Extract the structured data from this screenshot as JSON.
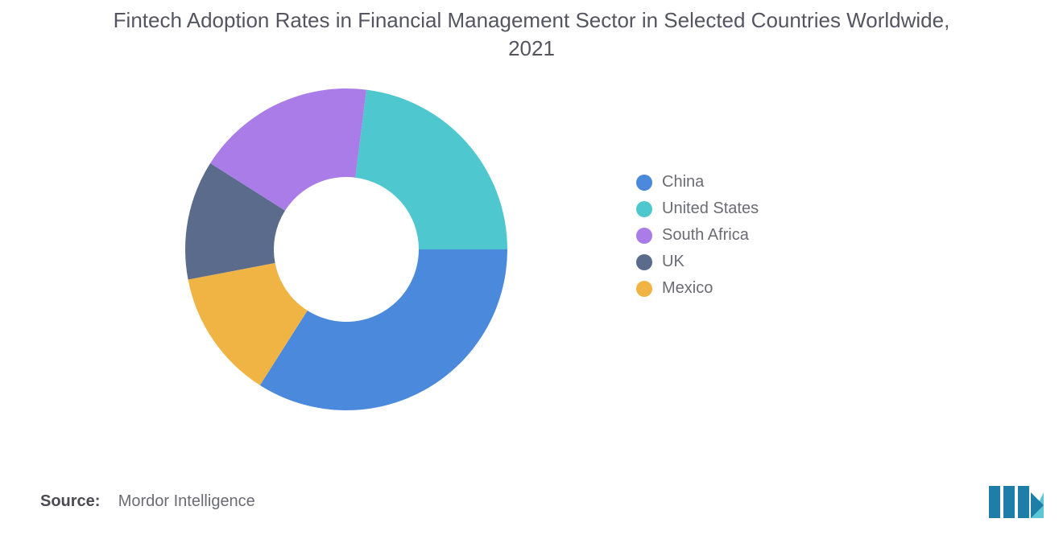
{
  "title": "Fintech Adoption Rates in Financial Management Sector in Selected Countries Worldwide, 2021",
  "title_fontsize": 26,
  "title_color": "#555560",
  "chart": {
    "type": "donut",
    "inner_radius_ratio": 0.45,
    "start_angle_deg": 0,
    "direction": "clockwise",
    "background_color": "#ffffff",
    "slices": [
      {
        "label": "China",
        "value": 34,
        "color": "#4a89dc"
      },
      {
        "label": "Mexico",
        "value": 13,
        "color": "#f0b445"
      },
      {
        "label": "UK",
        "value": 12,
        "color": "#5b6b8c"
      },
      {
        "label": "South Africa",
        "value": 18,
        "color": "#a97ce8"
      },
      {
        "label": "United States",
        "value": 23,
        "color": "#4fc7cf"
      }
    ],
    "legend_order": [
      "China",
      "United States",
      "South Africa",
      "UK",
      "Mexico"
    ],
    "legend_fontsize": 20,
    "legend_text_color": "#6b6b74"
  },
  "source_label": "Source:",
  "source_value": "Mordor Intelligence",
  "source_fontsize": 20,
  "logo": {
    "bar_color": "#1f7ea8",
    "accent_color": "#5cc8d6",
    "width": 70,
    "height": 42
  }
}
